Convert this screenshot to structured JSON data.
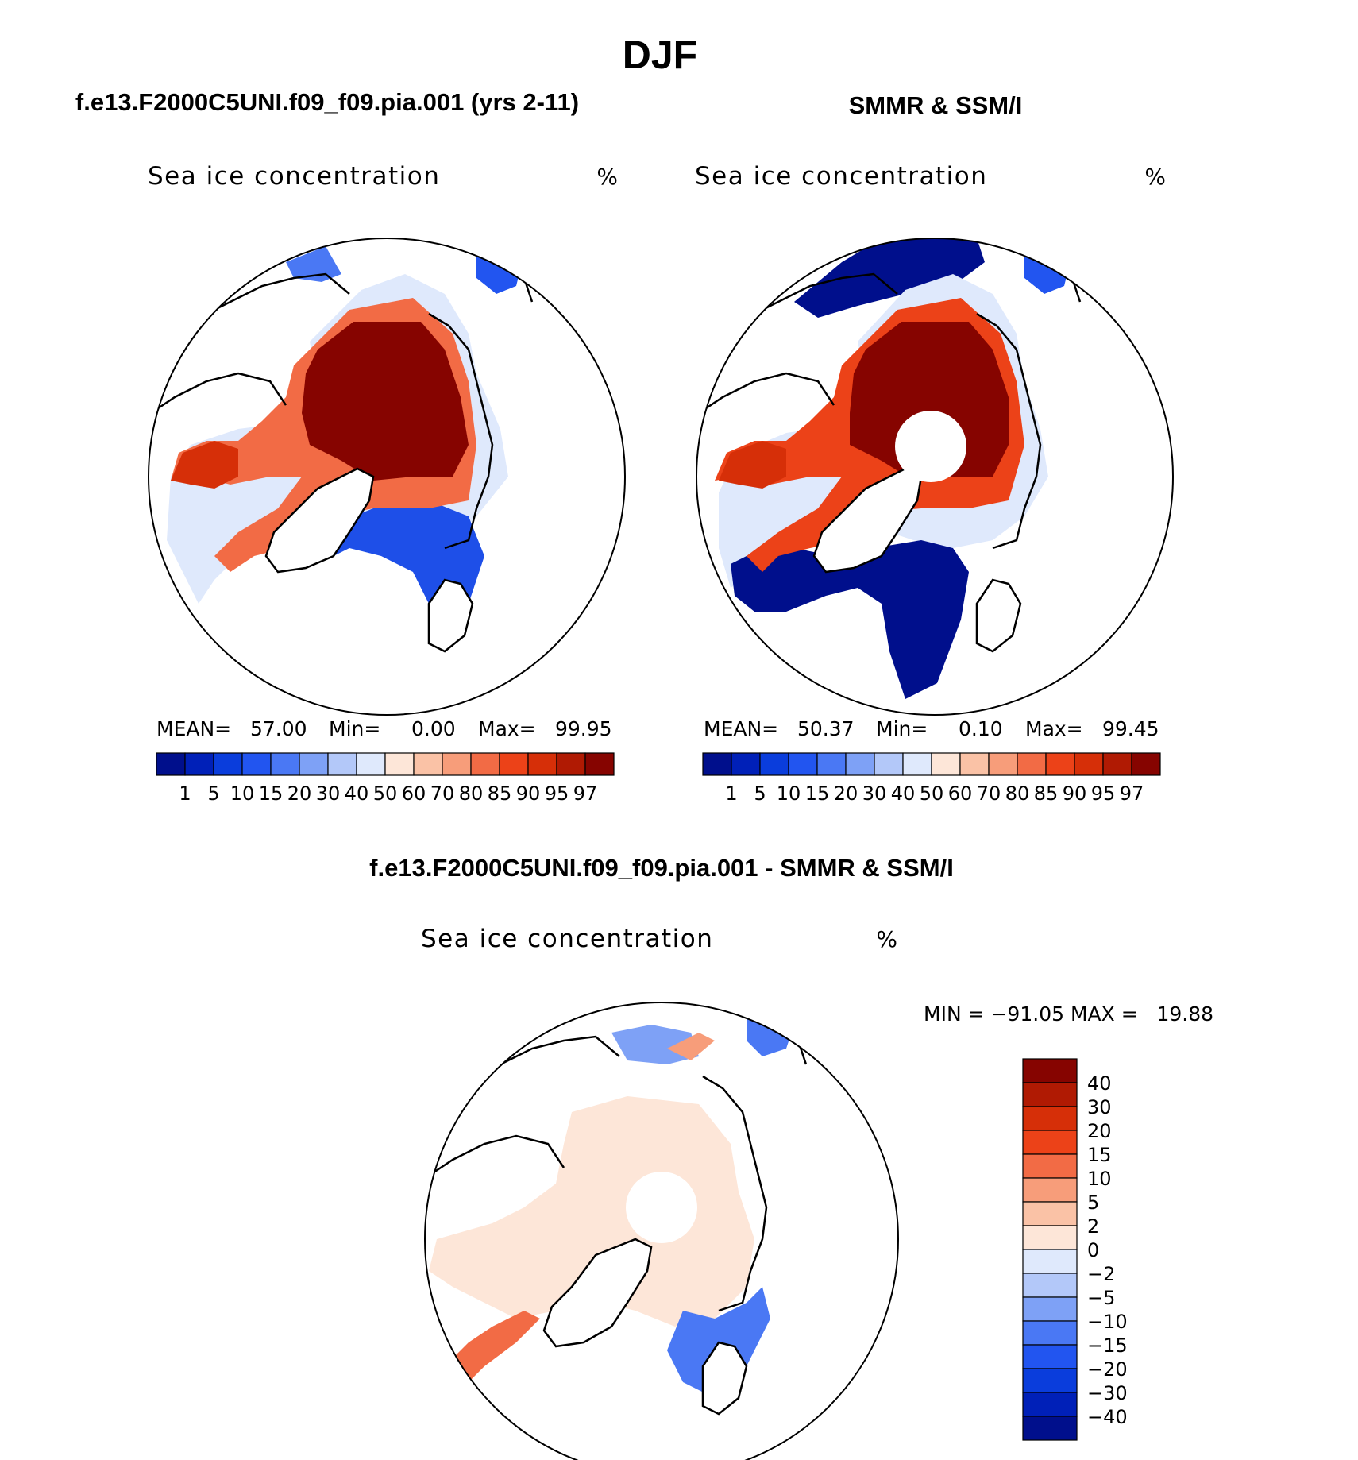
{
  "figure": {
    "season": "DJF",
    "left_title": "f.e13.F2000C5UNI.f09_f09.pia.001 (yrs 2-11)",
    "right_title": "SMMR & SSM/I",
    "diff_title": "f.e13.F2000C5UNI.f09_f09.pia.001 - SMMR & SSM/I"
  },
  "colors": {
    "conc_palette": [
      "#000f8c",
      "#0020b8",
      "#0a3ddc",
      "#2255f0",
      "#4a78f4",
      "#7ea1f6",
      "#b3c8f9",
      "#dfe9fc",
      "#fde6d8",
      "#fac2a6",
      "#f79d7a",
      "#f26b45",
      "#ec4218",
      "#d62f08",
      "#b01a03",
      "#860400"
    ],
    "diff_palette": [
      "#000f8c",
      "#0020b8",
      "#0a3ddc",
      "#2255f0",
      "#4a78f4",
      "#7ea1f6",
      "#b3c8f9",
      "#dfe9fc",
      "#fde6d8",
      "#fac2a6",
      "#f79d7a",
      "#f26b45",
      "#ec4218",
      "#d62f08",
      "#b01a03",
      "#860400"
    ],
    "coast": "#000000",
    "ocean": "#ffffff"
  },
  "chart_data": [
    {
      "type": "heatmap",
      "name": "model",
      "title": "f.e13.F2000C5UNI.f09_f09.pia.001 (yrs 2-11)",
      "subtitle": "Sea ice concentration",
      "units": "%",
      "projection": "north polar stereographic",
      "stats": {
        "mean_label": "MEAN=",
        "mean": "57.00",
        "min_label": "Min=",
        "min": "0.00",
        "max_label": "Max=",
        "max": "99.95"
      },
      "colorbar": {
        "orientation": "horizontal",
        "levels": [
          "1",
          "5",
          "10",
          "15",
          "20",
          "30",
          "40",
          "50",
          "60",
          "70",
          "80",
          "85",
          "90",
          "95",
          "97"
        ]
      },
      "pole_hole": false
    },
    {
      "type": "heatmap",
      "name": "observations",
      "title": "SMMR & SSM/I",
      "subtitle": "Sea ice concentration",
      "units": "%",
      "projection": "north polar stereographic",
      "stats": {
        "mean_label": "MEAN=",
        "mean": "50.37",
        "min_label": "Min=",
        "min": "0.10",
        "max_label": "Max=",
        "max": "99.45"
      },
      "colorbar": {
        "orientation": "horizontal",
        "levels": [
          "1",
          "5",
          "10",
          "15",
          "20",
          "30",
          "40",
          "50",
          "60",
          "70",
          "80",
          "85",
          "90",
          "95",
          "97"
        ]
      },
      "pole_hole": true
    },
    {
      "type": "heatmap",
      "name": "difference",
      "title": "f.e13.F2000C5UNI.f09_f09.pia.001 - SMMR & SSM/I",
      "subtitle": "Sea ice concentration",
      "units": "%",
      "projection": "north polar stereographic",
      "stats_text": "MIN = −91.05 MAX =   19.88",
      "colorbar": {
        "orientation": "vertical",
        "levels": [
          "40",
          "30",
          "20",
          "15",
          "10",
          "5",
          "2",
          "0",
          "−2",
          "−5",
          "−10",
          "−15",
          "−20",
          "−30",
          "−40"
        ]
      },
      "pole_hole": true
    }
  ]
}
